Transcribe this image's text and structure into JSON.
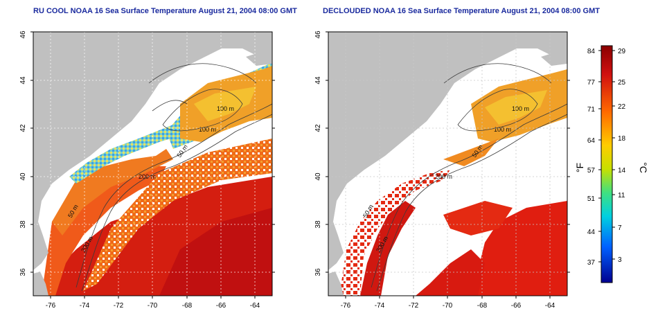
{
  "left_panel": {
    "title": "RU COOL NOAA 16 Sea Surface Temperature August 21, 2004 08:00 GMT"
  },
  "right_panel": {
    "title": "DECLOUDED NOAA 16 Sea Surface Temperature August 21, 2004 08:00 GMT"
  },
  "map": {
    "lat_ticks": [
      "36",
      "38",
      "40",
      "42",
      "44",
      "46"
    ],
    "lon_ticks": [
      "-76",
      "-74",
      "-72",
      "-70",
      "-68",
      "-66",
      "-64"
    ],
    "lat_range": [
      35,
      46
    ],
    "lon_range": [
      -77,
      -63
    ],
    "contour_labels": [
      "100 m",
      "100 m",
      "50 m",
      "200 m",
      "50 m",
      "200 m"
    ]
  },
  "colorbar": {
    "f_label": "°F",
    "c_label": "°C",
    "f_ticks": [
      "84",
      "77",
      "71",
      "64",
      "57",
      "51",
      "44",
      "37"
    ],
    "c_ticks": [
      "29",
      "25",
      "22",
      "18",
      "14",
      "11",
      "7",
      "3"
    ]
  },
  "colors": {
    "land": "#c0c0c0",
    "cloud": "#ffffff",
    "warm": "#e02a10",
    "hot": "#b80a0a",
    "mid": "#f08a20",
    "cool": "#f0c830",
    "cold": "#40c0c0"
  }
}
